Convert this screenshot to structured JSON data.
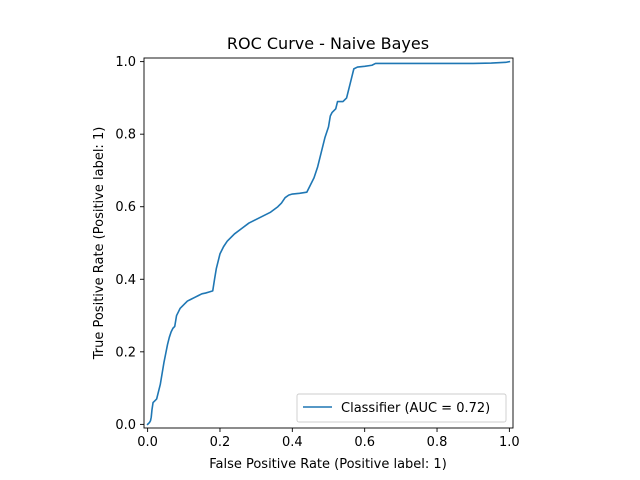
{
  "chart_data": {
    "type": "line",
    "title": "ROC Curve - Naive Bayes",
    "xlabel": "False Positive Rate (Positive label: 1)",
    "ylabel": "True Positive Rate (Positive label: 1)",
    "xlim": [
      -0.01,
      1.01
    ],
    "ylim": [
      -0.01,
      1.01
    ],
    "x_ticks": [
      0.0,
      0.2,
      0.4,
      0.6,
      0.8,
      1.0
    ],
    "y_ticks": [
      0.0,
      0.2,
      0.4,
      0.6,
      0.8,
      1.0
    ],
    "x_tick_labels": [
      "0.0",
      "0.2",
      "0.4",
      "0.6",
      "0.8",
      "1.0"
    ],
    "y_tick_labels": [
      "0.0",
      "0.2",
      "0.4",
      "0.6",
      "0.8",
      "1.0"
    ],
    "grid": false,
    "legend_position": "lower-right",
    "series": [
      {
        "name": "Classifier (AUC = 0.72)",
        "color": "#1f77b4",
        "x": [
          0.0,
          0.005,
          0.008,
          0.01,
          0.012,
          0.015,
          0.02,
          0.025,
          0.03,
          0.035,
          0.04,
          0.045,
          0.05,
          0.055,
          0.06,
          0.065,
          0.07,
          0.075,
          0.08,
          0.085,
          0.09,
          0.1,
          0.11,
          0.12,
          0.13,
          0.14,
          0.15,
          0.16,
          0.17,
          0.18,
          0.185,
          0.19,
          0.195,
          0.2,
          0.21,
          0.22,
          0.23,
          0.24,
          0.26,
          0.28,
          0.3,
          0.32,
          0.34,
          0.36,
          0.37,
          0.38,
          0.39,
          0.4,
          0.42,
          0.44,
          0.45,
          0.46,
          0.47,
          0.48,
          0.49,
          0.5,
          0.505,
          0.51,
          0.52,
          0.525,
          0.53,
          0.54,
          0.55,
          0.56,
          0.565,
          0.57,
          0.58,
          0.6,
          0.62,
          0.63,
          0.65,
          0.7,
          0.75,
          0.8,
          0.85,
          0.9,
          0.95,
          0.99,
          1.0
        ],
        "y": [
          0.0,
          0.005,
          0.01,
          0.02,
          0.04,
          0.06,
          0.065,
          0.07,
          0.09,
          0.11,
          0.14,
          0.17,
          0.195,
          0.22,
          0.24,
          0.255,
          0.265,
          0.27,
          0.3,
          0.31,
          0.32,
          0.33,
          0.34,
          0.345,
          0.35,
          0.355,
          0.36,
          0.362,
          0.365,
          0.368,
          0.4,
          0.43,
          0.45,
          0.47,
          0.49,
          0.505,
          0.515,
          0.525,
          0.54,
          0.555,
          0.565,
          0.575,
          0.585,
          0.6,
          0.61,
          0.625,
          0.632,
          0.635,
          0.637,
          0.64,
          0.66,
          0.68,
          0.71,
          0.75,
          0.79,
          0.82,
          0.85,
          0.86,
          0.87,
          0.89,
          0.89,
          0.89,
          0.9,
          0.94,
          0.96,
          0.98,
          0.985,
          0.987,
          0.99,
          0.995,
          0.995,
          0.995,
          0.995,
          0.995,
          0.995,
          0.995,
          0.996,
          0.998,
          1.0
        ]
      }
    ]
  }
}
